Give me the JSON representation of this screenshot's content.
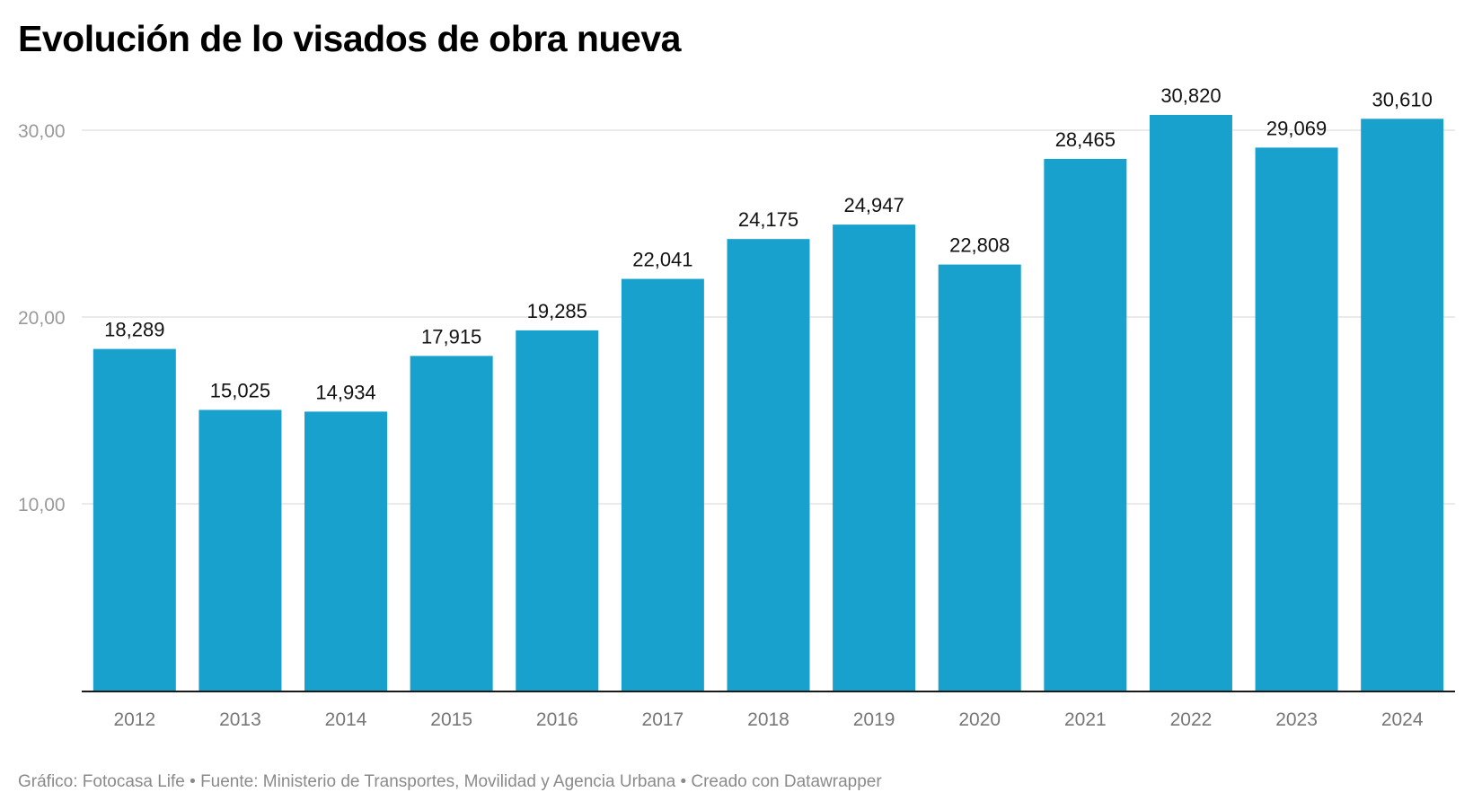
{
  "chart_data": {
    "type": "bar",
    "title": "Evolución de lo visados de obra nueva",
    "categories": [
      "2012",
      "2013",
      "2014",
      "2015",
      "2016",
      "2017",
      "2018",
      "2019",
      "2020",
      "2021",
      "2022",
      "2023",
      "2024"
    ],
    "values": [
      18.289,
      15.025,
      14.934,
      17.915,
      19.285,
      22.041,
      24.175,
      24.947,
      22.808,
      28.465,
      30.82,
      29.069,
      30.61
    ],
    "value_labels": [
      "18,289",
      "15,025",
      "14,934",
      "17,915",
      "19,285",
      "22,041",
      "24,175",
      "24,947",
      "22,808",
      "28,465",
      "30,820",
      "29,069",
      "30,610"
    ],
    "yticks": [
      10,
      20,
      30
    ],
    "ytick_labels": [
      "10,00",
      "20,00",
      "30,00"
    ],
    "ylim": [
      0,
      32
    ],
    "grid": true,
    "xlabel": "",
    "ylabel": "",
    "colors": {
      "bar": "#18a1cd",
      "grid": "#e3e3e3",
      "axis": "#1a1a1a",
      "tick_label": "#9a9a9a",
      "year_label": "#777777",
      "value_label": "#111111"
    }
  },
  "footer": "Gráfico: Fotocasa Life • Fuente: Ministerio de Transportes, Movilidad y Agencia Urbana • Creado con Datawrapper"
}
